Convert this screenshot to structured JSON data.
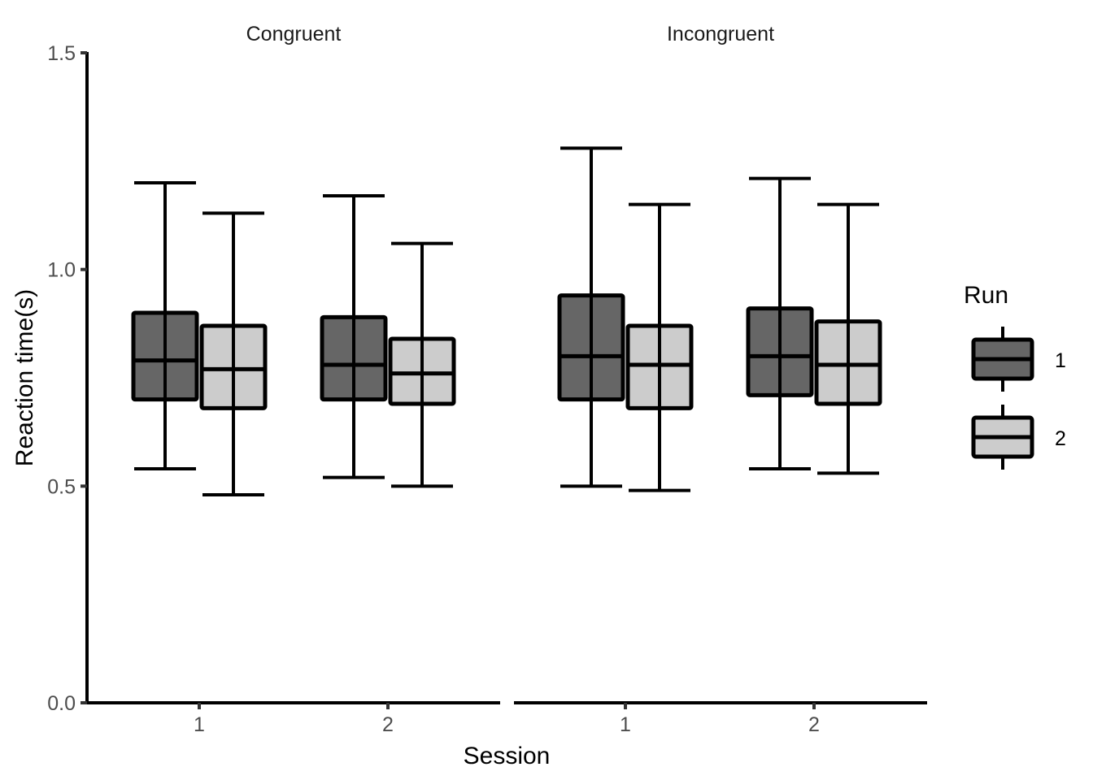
{
  "chart_data": {
    "type": "boxplot",
    "xlabel": "Session",
    "ylabel": "Reaction time(s)",
    "ylim": [
      0,
      1.5
    ],
    "yticks": [
      "0.0",
      "0.5",
      "1.0",
      "1.5"
    ],
    "legend": {
      "title": "Run",
      "position": "right",
      "entries": [
        "1",
        "2"
      ]
    },
    "colors": {
      "run1": "#666666",
      "run2": "#cccccc",
      "outline": "#000000"
    },
    "grid": false,
    "facets": [
      {
        "label": "Congruent",
        "categories": [
          "1",
          "2"
        ],
        "boxes": [
          {
            "session": "1",
            "run": "1",
            "min": 0.54,
            "q1": 0.7,
            "median": 0.79,
            "q3": 0.9,
            "max": 1.2
          },
          {
            "session": "1",
            "run": "2",
            "min": 0.48,
            "q1": 0.68,
            "median": 0.77,
            "q3": 0.87,
            "max": 1.13
          },
          {
            "session": "2",
            "run": "1",
            "min": 0.52,
            "q1": 0.7,
            "median": 0.78,
            "q3": 0.89,
            "max": 1.17
          },
          {
            "session": "2",
            "run": "2",
            "min": 0.5,
            "q1": 0.69,
            "median": 0.76,
            "q3": 0.84,
            "max": 1.06
          }
        ]
      },
      {
        "label": "Incongruent",
        "categories": [
          "1",
          "2"
        ],
        "boxes": [
          {
            "session": "1",
            "run": "1",
            "min": 0.5,
            "q1": 0.7,
            "median": 0.8,
            "q3": 0.94,
            "max": 1.28
          },
          {
            "session": "1",
            "run": "2",
            "min": 0.49,
            "q1": 0.68,
            "median": 0.78,
            "q3": 0.87,
            "max": 1.15
          },
          {
            "session": "2",
            "run": "1",
            "min": 0.54,
            "q1": 0.71,
            "median": 0.8,
            "q3": 0.91,
            "max": 1.21
          },
          {
            "session": "2",
            "run": "2",
            "min": 0.53,
            "q1": 0.69,
            "median": 0.78,
            "q3": 0.88,
            "max": 1.15
          }
        ]
      }
    ]
  }
}
